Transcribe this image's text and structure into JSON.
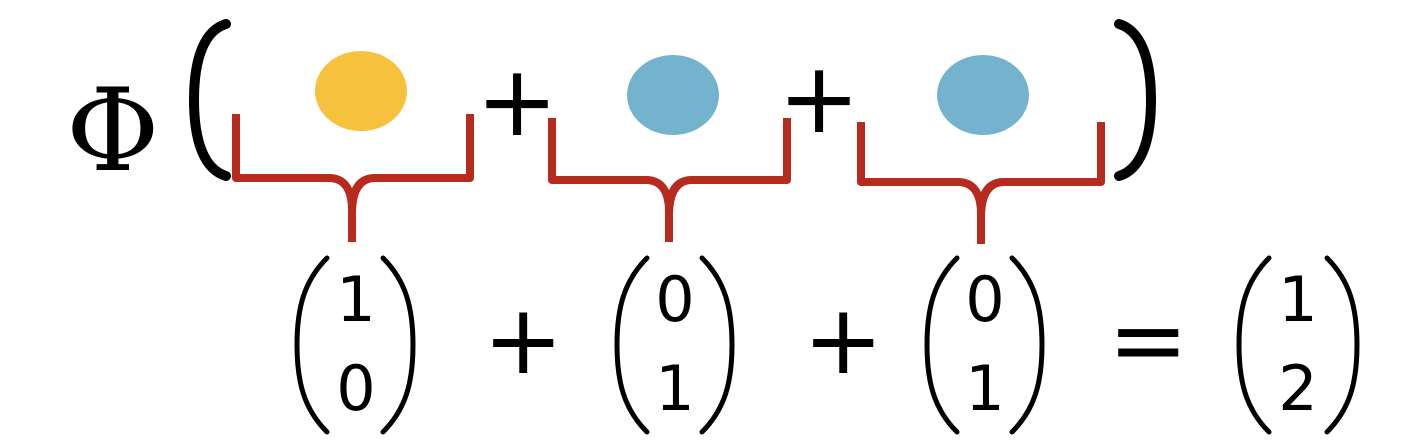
{
  "equation": {
    "function_symbol": "Φ",
    "top_operators": [
      "+",
      "+"
    ],
    "items": [
      {
        "color": "#F6C23D"
      },
      {
        "color": "#73B3CD"
      },
      {
        "color": "#73B3CD"
      }
    ],
    "vectors": [
      {
        "top": "1",
        "bottom": "0"
      },
      {
        "top": "0",
        "bottom": "1"
      },
      {
        "top": "0",
        "bottom": "1"
      }
    ],
    "bottom_operators": [
      "+",
      "+",
      "="
    ],
    "result": {
      "top": "1",
      "bottom": "2"
    },
    "brace_color": "#B62B1D"
  }
}
